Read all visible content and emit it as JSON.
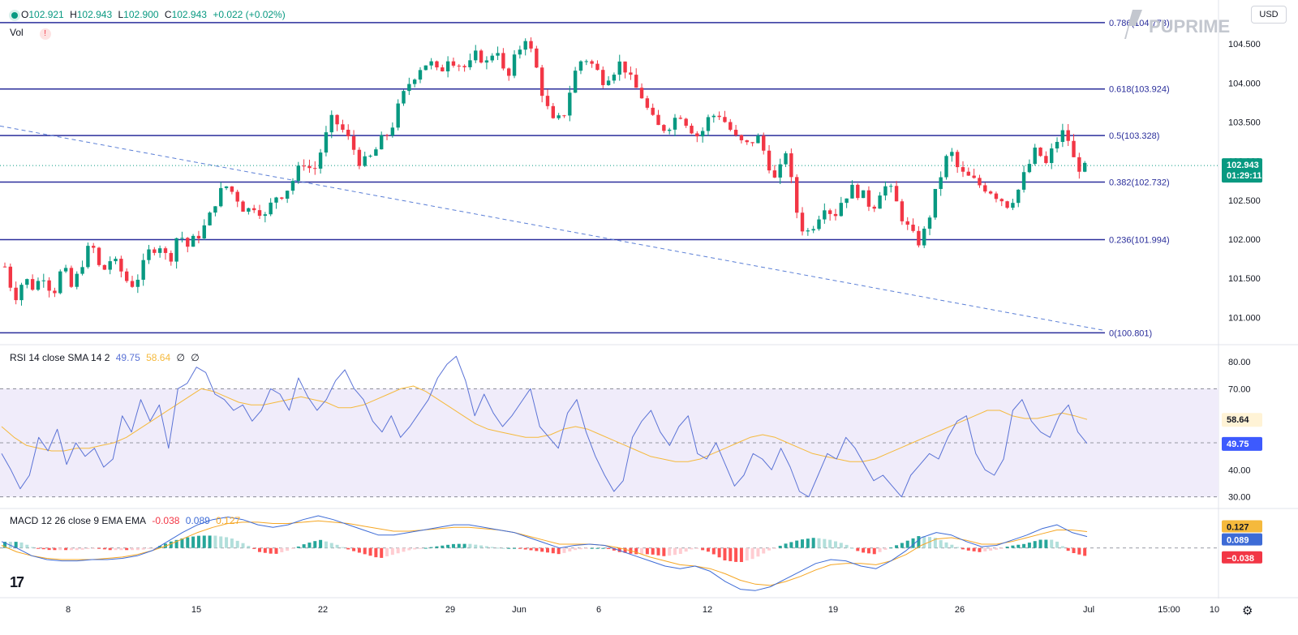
{
  "ohlc_legend": {
    "o_label": "O",
    "o": "102.921",
    "h_label": "H",
    "h": "102.943",
    "l_label": "L",
    "l": "102.900",
    "c_label": "C",
    "c": "102.943",
    "change": "+0.022 (+0.02%)"
  },
  "vol_label": "Vol",
  "vol_warning_icon": "warning-icon",
  "currency": "USD",
  "brand": "PUPRIME",
  "tv_logo": "17",
  "settings_icon": "gear-icon",
  "colors": {
    "up": "#089981",
    "down": "#f23645",
    "fib": "#2a2e9b",
    "trend": "#5b7fd6",
    "rsi": "#5b73d6",
    "rsi_sma": "#f5b93c",
    "macd": "#3d6bd6",
    "signal": "#f5a623",
    "grid": "#f0f3fa",
    "axis_text": "#131722"
  },
  "chart_data": [
    {
      "type": "candlestick",
      "title": "",
      "x_ticks": [
        "8",
        "15",
        "22",
        "29",
        "Jun",
        "6",
        "12",
        "19",
        "26",
        "Jul",
        "15:00",
        "10"
      ],
      "y_ticks": [
        "101.000",
        "101.500",
        "102.000",
        "102.500",
        "103.000",
        "103.500",
        "104.000",
        "104.500"
      ],
      "ylim": [
        100.66,
        104.98
      ],
      "candle_count": 196,
      "close_path": [
        101.65,
        101.25,
        101.5,
        101.38,
        101.55,
        101.3,
        101.65,
        101.35,
        101.7,
        101.95,
        101.55,
        101.75,
        101.6,
        101.4,
        101.55,
        101.85,
        101.95,
        101.7,
        102.1,
        101.9,
        102.05,
        102.2,
        102.55,
        102.68,
        102.55,
        102.35,
        102.45,
        102.28,
        102.55,
        102.6,
        102.78,
        103.0,
        102.85,
        103.22,
        103.55,
        103.4,
        103.2,
        102.95,
        103.05,
        103.25,
        103.4,
        103.75,
        104.02,
        104.2,
        104.28,
        104.1,
        104.35,
        104.25,
        104.18,
        104.38,
        104.25,
        104.5,
        103.98,
        104.35,
        104.6,
        104.25,
        103.75,
        103.45,
        103.62,
        104.1,
        104.35,
        104.22,
        104.05,
        104.15,
        104.28,
        104.0,
        103.85,
        103.55,
        103.4,
        103.48,
        103.62,
        103.45,
        103.3,
        103.55,
        103.62,
        103.45,
        103.25,
        103.2,
        103.32,
        103.05,
        102.7,
        103.15,
        102.4,
        102.05,
        102.22,
        102.45,
        102.3,
        102.55,
        102.65,
        102.55,
        102.4,
        102.7,
        102.6,
        102.3,
        102.05,
        101.95,
        102.35,
        102.8,
        103.15,
        102.85,
        102.78,
        102.7,
        102.65,
        102.55,
        102.45,
        102.6,
        102.9,
        103.15,
        102.95,
        103.25,
        103.4,
        102.95,
        102.9
      ],
      "last_price": "102.943",
      "countdown": "01:29:11",
      "fib_levels": [
        {
          "label": "0.786(104.773)",
          "value": 104.773
        },
        {
          "label": "0.618(103.924)",
          "value": 103.924
        },
        {
          "label": "0.5(103.328)",
          "value": 103.328
        },
        {
          "label": "0.382(102.732)",
          "value": 102.732
        },
        {
          "label": "0.236(101.994)",
          "value": 101.994
        },
        {
          "label": "0(100.801)",
          "value": 100.801
        }
      ],
      "trendline": {
        "from_value": 103.45,
        "to_value": 100.83
      },
      "last_price_line": 102.943
    },
    {
      "type": "line",
      "title": "RSI 14 close SMA 14 2",
      "legend_values": {
        "rsi": "49.75",
        "sma": "58.64",
        "extra1": "∅",
        "extra2": "∅"
      },
      "y_ticks": [
        "30.00",
        "40.00",
        "50.00",
        "60.00",
        "70.00",
        "80.00"
      ],
      "ylim": [
        26,
        86
      ],
      "band": [
        30,
        70
      ],
      "midline": 50,
      "rsi_value_tag": "49.75",
      "sma_value_tag": "58.64",
      "rsi_path": [
        46,
        40,
        33,
        38,
        52,
        47,
        55,
        42,
        50,
        45,
        48,
        41,
        44,
        60,
        54,
        66,
        58,
        64,
        48,
        70,
        72,
        78,
        76,
        68,
        66,
        62,
        64,
        58,
        62,
        70,
        68,
        62,
        74,
        67,
        62,
        66,
        73,
        77,
        70,
        66,
        58,
        54,
        60,
        52,
        56,
        61,
        66,
        74,
        79,
        82,
        73,
        60,
        68,
        61,
        56,
        60,
        65,
        70,
        56,
        52,
        48,
        61,
        66,
        54,
        45,
        38,
        32,
        36,
        52,
        58,
        62,
        54,
        49,
        56,
        60,
        46,
        44,
        50,
        42,
        34,
        38,
        46,
        44,
        40,
        48,
        41,
        32,
        30,
        38,
        46,
        44,
        52,
        48,
        42,
        36,
        38,
        34,
        30,
        38,
        42,
        46,
        44,
        52,
        58,
        60,
        46,
        40,
        38,
        44,
        62,
        66,
        58,
        54,
        52,
        60,
        64,
        54,
        49.75
      ],
      "sma_path": [
        57,
        53,
        50,
        48,
        46,
        46,
        47,
        47,
        48,
        48,
        49,
        50,
        52,
        54,
        56,
        58,
        62,
        66,
        67,
        66,
        64,
        62,
        62,
        63,
        64,
        63,
        62,
        63,
        65,
        66,
        67,
        64,
        62,
        60,
        60,
        62,
        64,
        68,
        72,
        70,
        67,
        64,
        61,
        58,
        56,
        54,
        52,
        50,
        50,
        50,
        52,
        54,
        56,
        54,
        52,
        50,
        48,
        46,
        44,
        43,
        42,
        42,
        44,
        46,
        48,
        49,
        50,
        52,
        53,
        52,
        50,
        48,
        46,
        44,
        43,
        42,
        43,
        44,
        46,
        48,
        50,
        52,
        54,
        56,
        58,
        59,
        60,
        58,
        57,
        57,
        58,
        58.64
      ],
      "sma_path_alt": [
        56,
        52,
        49,
        48,
        47,
        47,
        48,
        48,
        49,
        50,
        52,
        55,
        58,
        61,
        64,
        67,
        70,
        69,
        67,
        65,
        64,
        64,
        65,
        66,
        67,
        66,
        65,
        63,
        63,
        64,
        66,
        68,
        70,
        71,
        69,
        66,
        63,
        60,
        57,
        55,
        54,
        53,
        52,
        52,
        53,
        55,
        56,
        55,
        53,
        51,
        49,
        47,
        45,
        44,
        43,
        43,
        44,
        46,
        48,
        50,
        52,
        53,
        52,
        50,
        48,
        46,
        45,
        44,
        43,
        43,
        44,
        46,
        48,
        50,
        52,
        54,
        56,
        58,
        60,
        62,
        62,
        60,
        59,
        59,
        60,
        61,
        60,
        58.64
      ]
    },
    {
      "type": "line+bar",
      "title": "MACD 12 26 close 9 EMA EMA",
      "legend_values": {
        "hist": "-0.038",
        "macd": "0.089",
        "signal": "0.127"
      },
      "ylim": [
        -0.36,
        0.3
      ],
      "zero_line": 0,
      "macd_tag": "0.089",
      "signal_tag": "0.127",
      "hist_tag": "−0.038",
      "macd_path": [
        0.05,
        0.0,
        -0.06,
        -0.09,
        -0.1,
        -0.1,
        -0.09,
        -0.09,
        -0.08,
        -0.06,
        -0.02,
        0.05,
        0.12,
        0.18,
        0.22,
        0.24,
        0.22,
        0.18,
        0.16,
        0.18,
        0.22,
        0.25,
        0.22,
        0.18,
        0.14,
        0.1,
        0.1,
        0.12,
        0.14,
        0.16,
        0.18,
        0.18,
        0.16,
        0.14,
        0.12,
        0.08,
        0.04,
        0.0,
        0.02,
        0.03,
        0.02,
        -0.02,
        -0.06,
        -0.1,
        -0.14,
        -0.16,
        -0.14,
        -0.18,
        -0.26,
        -0.32,
        -0.33,
        -0.3,
        -0.24,
        -0.18,
        -0.12,
        -0.09,
        -0.1,
        -0.14,
        -0.16,
        -0.1,
        -0.02,
        0.08,
        0.12,
        0.1,
        0.05,
        0.01,
        0.02,
        0.06,
        0.1,
        0.15,
        0.18,
        0.12,
        0.089
      ],
      "signal_path": [
        0.02,
        -0.03,
        -0.06,
        -0.08,
        -0.09,
        -0.09,
        -0.09,
        -0.08,
        -0.07,
        -0.05,
        -0.02,
        0.02,
        0.07,
        0.12,
        0.16,
        0.19,
        0.2,
        0.2,
        0.19,
        0.19,
        0.2,
        0.21,
        0.2,
        0.19,
        0.17,
        0.15,
        0.13,
        0.13,
        0.14,
        0.15,
        0.16,
        0.16,
        0.15,
        0.14,
        0.12,
        0.09,
        0.06,
        0.03,
        0.03,
        0.03,
        0.02,
        0.0,
        -0.03,
        -0.07,
        -0.1,
        -0.13,
        -0.14,
        -0.16,
        -0.2,
        -0.25,
        -0.28,
        -0.29,
        -0.26,
        -0.22,
        -0.17,
        -0.13,
        -0.12,
        -0.12,
        -0.13,
        -0.1,
        -0.05,
        0.02,
        0.07,
        0.08,
        0.06,
        0.03,
        0.03,
        0.05,
        0.08,
        0.11,
        0.14,
        0.14,
        0.127
      ]
    }
  ]
}
